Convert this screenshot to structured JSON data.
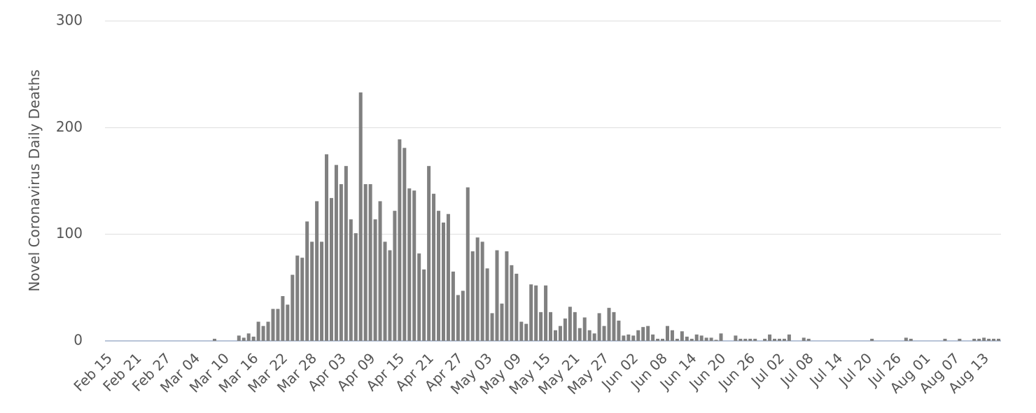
{
  "chart_data": {
    "type": "bar",
    "y_label": "Novel Coronavirus Daily Deaths",
    "color": "#808080",
    "categories": [
      "Feb 15",
      null,
      null,
      null,
      null,
      null,
      "Feb 21",
      null,
      null,
      null,
      null,
      null,
      "Feb 27",
      null,
      null,
      null,
      null,
      null,
      "Mar 04",
      null,
      null,
      null,
      null,
      null,
      "Mar 10",
      null,
      null,
      null,
      null,
      null,
      "Mar 16",
      null,
      null,
      null,
      null,
      null,
      "Mar 22",
      null,
      null,
      null,
      null,
      null,
      "Mar 28",
      null,
      null,
      null,
      null,
      null,
      "Apr 03",
      null,
      null,
      null,
      null,
      null,
      "Apr 09",
      null,
      null,
      null,
      null,
      null,
      "Apr 15",
      null,
      null,
      null,
      null,
      null,
      "Apr 21",
      null,
      null,
      null,
      null,
      null,
      "Apr 27",
      null,
      null,
      null,
      null,
      null,
      "May 03",
      null,
      null,
      null,
      null,
      null,
      "May 09",
      null,
      null,
      null,
      null,
      null,
      "May 15",
      null,
      null,
      null,
      null,
      null,
      "May 21",
      null,
      null,
      null,
      null,
      null,
      "May 27",
      null,
      null,
      null,
      null,
      null,
      "Jun 02",
      null,
      null,
      null,
      null,
      null,
      "Jun 08",
      null,
      null,
      null,
      null,
      null,
      "Jun 14",
      null,
      null,
      null,
      null,
      null,
      "Jun 20",
      null,
      null,
      null,
      null,
      null,
      "Jun 26",
      null,
      null,
      null,
      null,
      null,
      "Jul 02",
      null,
      null,
      null,
      null,
      null,
      "Jul 08",
      null,
      null,
      null,
      null,
      null,
      "Jul 14",
      null,
      null,
      null,
      null,
      null,
      "Jul 20",
      null,
      null,
      null,
      null,
      null,
      "Jul 26",
      null,
      null,
      null,
      null,
      null,
      "Aug 01",
      null,
      null,
      null,
      null,
      null,
      "Aug 07",
      null,
      null,
      null,
      null,
      null,
      "Aug 13",
      null,
      null,
      null
    ],
    "values": [
      0,
      0,
      0,
      0,
      0,
      0,
      0,
      0,
      0,
      0,
      0,
      0,
      0,
      0,
      0,
      0,
      0,
      0,
      0,
      0,
      0,
      0,
      2,
      0,
      0,
      0,
      0,
      5,
      3,
      7,
      4,
      18,
      14,
      18,
      30,
      30,
      42,
      34,
      62,
      80,
      78,
      112,
      93,
      131,
      93,
      175,
      134,
      165,
      147,
      164,
      114,
      101,
      233,
      147,
      147,
      114,
      131,
      93,
      85,
      122,
      189,
      181,
      143,
      141,
      82,
      67,
      164,
      138,
      122,
      111,
      119,
      65,
      43,
      47,
      144,
      84,
      97,
      93,
      68,
      26,
      85,
      35,
      84,
      71,
      63,
      18,
      16,
      53,
      52,
      27,
      52,
      27,
      10,
      14,
      21,
      32,
      27,
      12,
      22,
      10,
      7,
      26,
      14,
      31,
      27,
      19,
      5,
      6,
      5,
      10,
      13,
      14,
      6,
      2,
      2,
      14,
      10,
      2,
      9,
      4,
      2,
      6,
      5,
      3,
      3,
      1,
      7,
      0,
      0,
      5,
      2,
      2,
      2,
      2,
      0,
      2,
      6,
      2,
      2,
      2,
      6,
      0,
      0,
      3,
      2,
      0,
      0,
      0,
      0,
      0,
      0,
      0,
      0,
      0,
      0,
      0,
      0,
      2,
      0,
      0,
      0,
      0,
      0,
      0,
      3,
      2,
      0,
      0,
      0,
      0,
      0,
      0,
      2,
      0,
      0,
      2,
      0,
      0,
      2,
      2,
      3,
      2,
      2,
      2
    ],
    "ylim": [
      0,
      300
    ],
    "yticks": [
      0,
      100,
      200,
      300
    ],
    "grid": true
  }
}
